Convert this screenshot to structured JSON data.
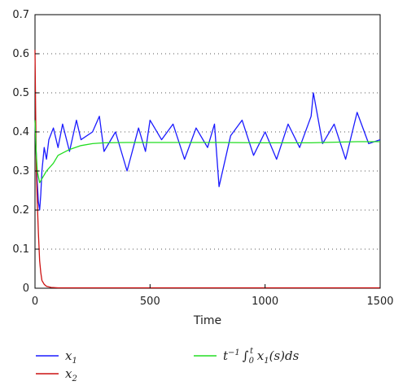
{
  "chart_data": {
    "type": "line",
    "xlabel": "Time",
    "ylabel": "",
    "xlim": [
      0,
      1500
    ],
    "ylim": [
      0,
      0.7
    ],
    "x_ticks": [
      "0",
      "500",
      "1000",
      "1500"
    ],
    "y_ticks": [
      "0",
      "0.1",
      "0.2",
      "0.3",
      "0.4",
      "0.5",
      "0.6",
      "0.7"
    ],
    "grid": "dotted horizontal",
    "legend_placement": "below",
    "series": [
      {
        "name": "x1",
        "color": "#1a1aff",
        "x": [
          0,
          5,
          10,
          15,
          20,
          25,
          30,
          40,
          50,
          60,
          80,
          100,
          120,
          150,
          180,
          200,
          250,
          280,
          300,
          350,
          400,
          450,
          480,
          500,
          550,
          600,
          650,
          700,
          750,
          780,
          800,
          850,
          900,
          950,
          1000,
          1050,
          1100,
          1150,
          1200,
          1210,
          1250,
          1300,
          1350,
          1400,
          1450,
          1500
        ],
        "values": [
          0.43,
          0.35,
          0.27,
          0.22,
          0.2,
          0.24,
          0.3,
          0.36,
          0.33,
          0.38,
          0.41,
          0.36,
          0.42,
          0.35,
          0.43,
          0.38,
          0.4,
          0.44,
          0.35,
          0.4,
          0.3,
          0.41,
          0.35,
          0.43,
          0.38,
          0.42,
          0.33,
          0.41,
          0.36,
          0.42,
          0.26,
          0.39,
          0.43,
          0.34,
          0.4,
          0.33,
          0.42,
          0.36,
          0.44,
          0.5,
          0.37,
          0.42,
          0.33,
          0.45,
          0.37,
          0.38
        ]
      },
      {
        "name": "x2",
        "color": "#cc1111",
        "x": [
          0,
          3,
          6,
          10,
          15,
          20,
          25,
          30,
          40,
          50,
          70,
          100,
          200,
          500,
          1000,
          1500
        ],
        "values": [
          0.61,
          0.45,
          0.3,
          0.22,
          0.14,
          0.07,
          0.04,
          0.02,
          0.01,
          0.005,
          0.002,
          0.001,
          0.001,
          0.001,
          0.001,
          0.001
        ]
      },
      {
        "name": "t^-1 ∫0^t x1(s)ds",
        "color": "#22dd22",
        "x": [
          0,
          5,
          10,
          20,
          30,
          50,
          80,
          100,
          150,
          200,
          250,
          300,
          400,
          600,
          800,
          1000,
          1200,
          1400,
          1500
        ],
        "values": [
          0.43,
          0.35,
          0.3,
          0.27,
          0.28,
          0.3,
          0.32,
          0.34,
          0.355,
          0.365,
          0.37,
          0.372,
          0.373,
          0.373,
          0.373,
          0.372,
          0.372,
          0.375,
          0.375
        ]
      }
    ]
  },
  "legend": {
    "x1_base": "x",
    "x1_sub": "1",
    "x2_base": "x",
    "x2_sub": "2",
    "avg_t": "t",
    "avg_exp": "−1",
    "avg_int": "∫",
    "avg_lower": "0",
    "avg_upper": "t",
    "avg_x": " x",
    "avg_x_sub": "1",
    "avg_tail": "(s)ds"
  }
}
